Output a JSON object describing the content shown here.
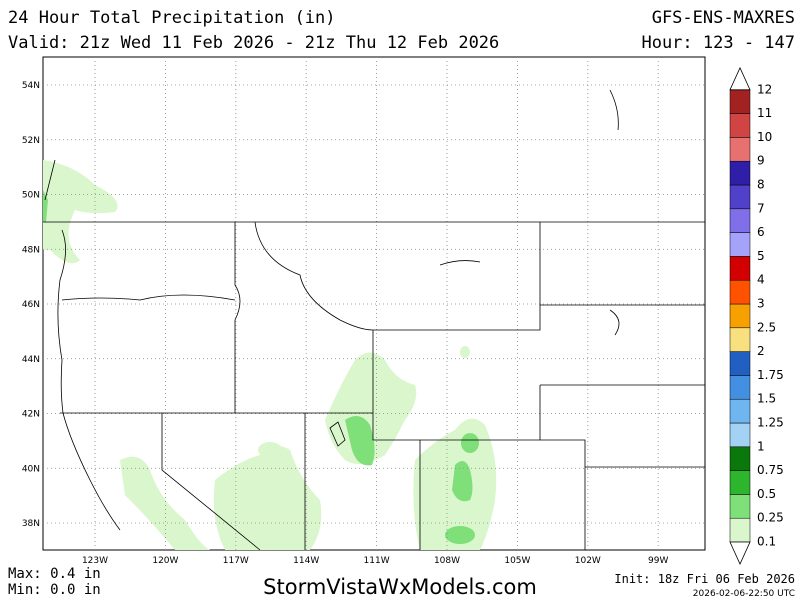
{
  "header": {
    "title": "24 Hour Total Precipitation (in)",
    "model": "GFS-ENS-MAXRES",
    "valid": "Valid: 21z Wed 11 Feb 2026 - 21z Thu 12 Feb 2026",
    "hour": "Hour: 123 - 147"
  },
  "map": {
    "lat_labels": [
      "54N",
      "52N",
      "50N",
      "48N",
      "46N",
      "44N",
      "42N",
      "40N",
      "38N"
    ],
    "lon_labels": [
      "123W",
      "120W",
      "117W",
      "114W",
      "111W",
      "108W",
      "105W",
      "102W",
      "99W"
    ]
  },
  "colorbar": {
    "labels": [
      "0.1",
      "0.25",
      "0.5",
      "0.75",
      "1",
      "1.25",
      "1.5",
      "1.75",
      "2",
      "2.5",
      "3",
      "4",
      "5",
      "6",
      "7",
      "8",
      "9",
      "10",
      "11",
      "12"
    ],
    "colors": [
      "#daf6cc",
      "#7fe07a",
      "#2db52d",
      "#0a780a",
      "#a4d2f4",
      "#6fb5ef",
      "#4390e2",
      "#2160c2",
      "#f9e07f",
      "#f7a100",
      "#ff5200",
      "#d20000",
      "#a5a2f9",
      "#7f70e9",
      "#5141c9",
      "#2f1fa8",
      "#e77171",
      "#d04444",
      "#a22222"
    ]
  },
  "footer": {
    "max": "Max: 0.4 in",
    "min": "Min: 0.0 in",
    "site": "StormVistaWxModels.com",
    "init": "Init: 18z Fri 06 Feb 2026",
    "stamp": "2026-02-06-22:50 UTC"
  }
}
